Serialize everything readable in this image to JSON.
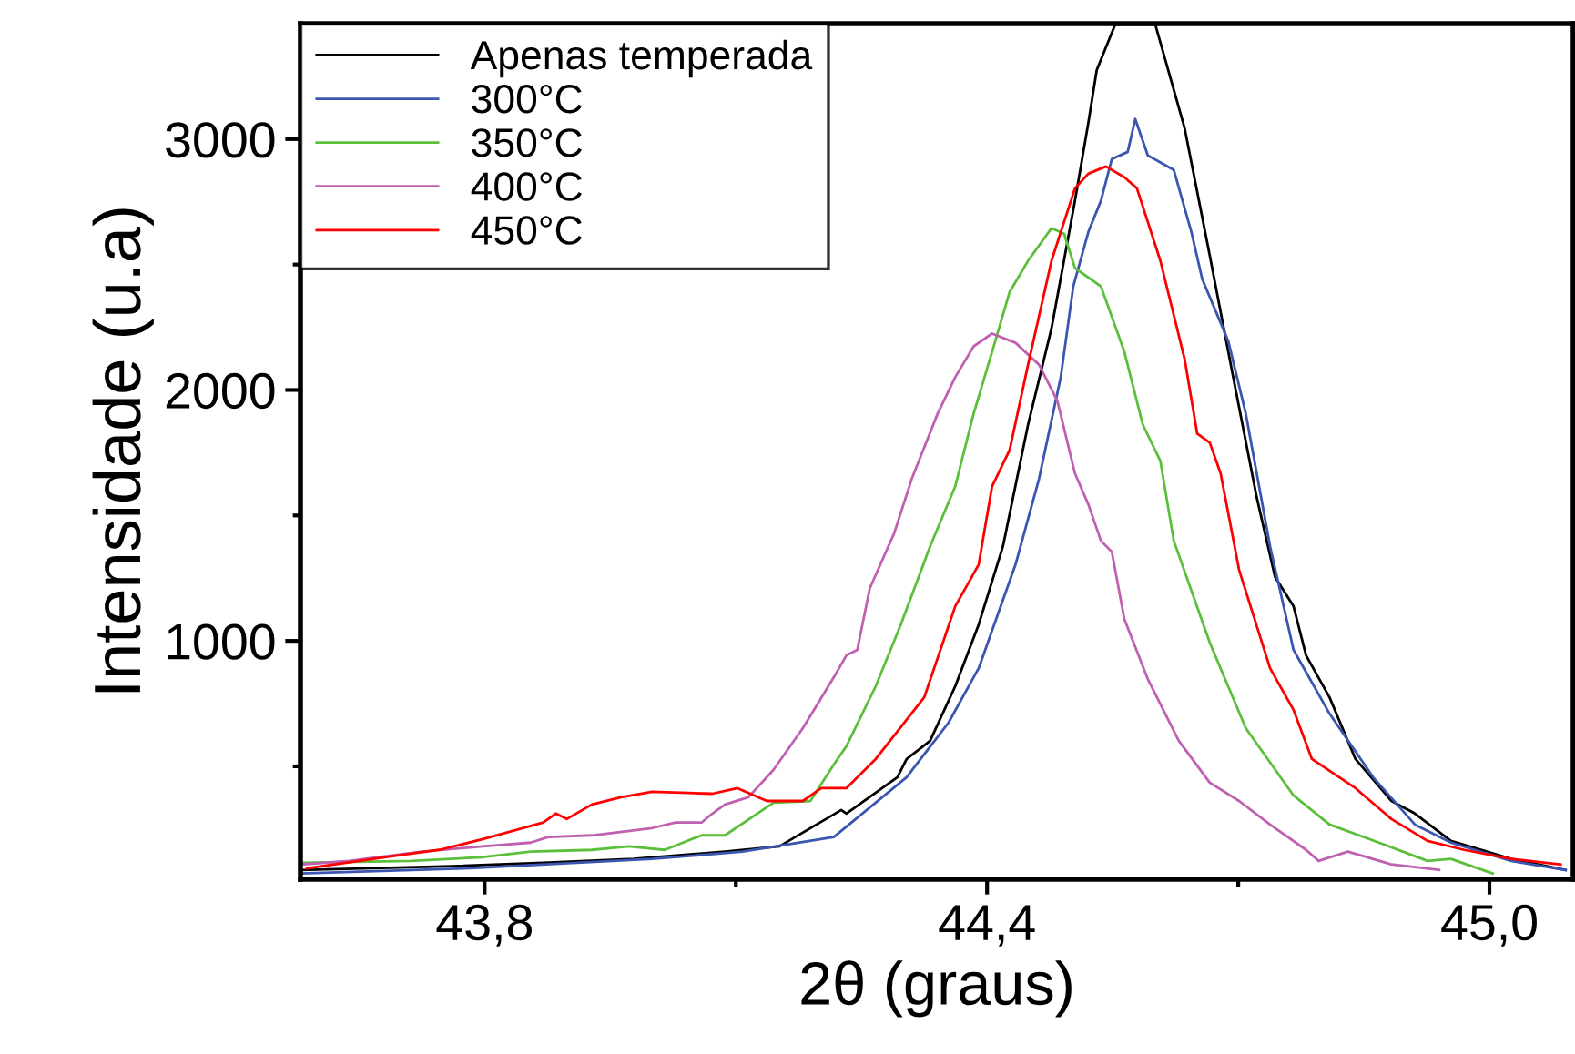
{
  "chart_data": {
    "type": "line",
    "xlabel": "2θ (graus)",
    "ylabel": "Intensidade (u.a)",
    "xlim": [
      43.58,
      45.1
    ],
    "xticks": [
      {
        "value": 43.8,
        "label": "43,8"
      },
      {
        "value": 44.1,
        "label": null
      },
      {
        "value": 44.4,
        "label": "44,4"
      },
      {
        "value": 44.7,
        "label": null
      },
      {
        "value": 45.0,
        "label": "45,0"
      }
    ],
    "ylim": [
      50,
      3460
    ],
    "yticks": [
      {
        "value": 500,
        "label": null
      },
      1000,
      {
        "value": 1500,
        "label": null
      },
      2000,
      {
        "value": 2500,
        "label": null
      },
      3000
    ],
    "grid": false,
    "legend": "top left",
    "marker": "none",
    "line_style": "solid",
    "series": [
      {
        "name": "Apenas temperada",
        "color": "#000000",
        "x": [
          43.58,
          43.761,
          43.87,
          43.978,
          44.087,
          44.152,
          44.226,
          44.232,
          44.293,
          44.304,
          44.332,
          44.362,
          44.39,
          44.419,
          44.449,
          44.477,
          44.505,
          44.521,
          44.531,
          44.553,
          44.601,
          44.636,
          44.666,
          44.694,
          44.722,
          44.744,
          44.766,
          44.781,
          44.809,
          44.84,
          44.883,
          44.911,
          44.954,
          45.026,
          45.091
        ],
        "values": [
          87,
          102,
          116,
          131,
          160,
          181,
          326,
          312,
          457,
          529,
          602,
          819,
          1065,
          1377,
          1862,
          2246,
          2754,
          3065,
          3275,
          3456,
          3456,
          3043,
          2536,
          2051,
          1573,
          1254,
          1138,
          942,
          775,
          529,
          362,
          312,
          203,
          131,
          87
        ]
      },
      {
        "name": "300°C",
        "color": "#3a56b0",
        "x": [
          43.58,
          43.783,
          44.0,
          44.108,
          44.217,
          44.304,
          44.354,
          44.39,
          44.434,
          44.462,
          44.488,
          44.503,
          44.521,
          44.536,
          44.549,
          44.568,
          44.577,
          44.592,
          44.623,
          44.644,
          44.657,
          44.688,
          44.709,
          44.738,
          44.766,
          44.809,
          44.861,
          44.911,
          44.954,
          45.026,
          45.091
        ],
        "values": [
          73,
          94,
          131,
          160,
          218,
          457,
          674,
          891,
          1304,
          1645,
          2051,
          2413,
          2630,
          2754,
          2920,
          2949,
          3080,
          2935,
          2877,
          2630,
          2442,
          2196,
          1906,
          1377,
          964,
          710,
          457,
          268,
          196,
          123,
          87
        ]
      },
      {
        "name": "350°C",
        "color": "#5cbf3c",
        "x": [
          43.58,
          43.712,
          43.798,
          43.855,
          43.928,
          43.972,
          44.015,
          44.059,
          44.087,
          44.145,
          44.189,
          44.217,
          44.232,
          44.267,
          44.297,
          44.332,
          44.362,
          44.384,
          44.406,
          44.427,
          44.449,
          44.477,
          44.492,
          44.505,
          44.536,
          44.564,
          44.586,
          44.607,
          44.623,
          44.666,
          44.709,
          44.766,
          44.809,
          44.868,
          44.926,
          44.954,
          45.004
        ],
        "values": [
          116,
          123,
          138,
          160,
          167,
          181,
          167,
          225,
          225,
          355,
          362,
          507,
          580,
          819,
          1065,
          1377,
          1616,
          1906,
          2152,
          2391,
          2515,
          2645,
          2623,
          2486,
          2413,
          2152,
          1862,
          1717,
          1399,
          993,
          652,
          384,
          268,
          196,
          123,
          131,
          73
        ]
      },
      {
        "name": "400°C",
        "color": "#c060b0",
        "x": [
          43.58,
          43.638,
          43.725,
          43.798,
          43.855,
          43.876,
          43.928,
          44.0,
          44.028,
          44.059,
          44.072,
          44.087,
          44.115,
          44.145,
          44.18,
          44.217,
          44.232,
          44.245,
          44.26,
          44.289,
          44.31,
          44.341,
          44.362,
          44.384,
          44.406,
          44.434,
          44.462,
          44.484,
          44.505,
          44.521,
          44.536,
          44.549,
          44.564,
          44.592,
          44.629,
          44.666,
          44.701,
          44.738,
          44.781,
          44.796,
          44.831,
          44.883,
          44.94
        ],
        "values": [
          109,
          123,
          160,
          181,
          196,
          218,
          225,
          254,
          276,
          276,
          312,
          348,
          377,
          486,
          652,
          855,
          942,
          964,
          1210,
          1428,
          1645,
          1906,
          2051,
          2174,
          2225,
          2188,
          2101,
          1957,
          1667,
          1544,
          1399,
          1355,
          1087,
          848,
          602,
          435,
          362,
          268,
          167,
          123,
          160,
          109,
          87
        ]
      },
      {
        "name": "450°C",
        "color": "#ff0000",
        "x": [
          43.588,
          43.696,
          43.746,
          43.798,
          43.87,
          43.885,
          43.898,
          43.928,
          43.963,
          44.0,
          44.072,
          44.102,
          44.137,
          44.18,
          44.202,
          44.232,
          44.267,
          44.325,
          44.362,
          44.39,
          44.406,
          44.427,
          44.449,
          44.477,
          44.505,
          44.521,
          44.542,
          44.564,
          44.579,
          44.607,
          44.636,
          44.651,
          44.666,
          44.679,
          44.701,
          44.738,
          44.766,
          44.788,
          44.84,
          44.883,
          44.926,
          44.97,
          45.026,
          45.085
        ],
        "values": [
          94,
          145,
          167,
          210,
          276,
          312,
          290,
          348,
          377,
          399,
          391,
          413,
          362,
          362,
          413,
          413,
          529,
          775,
          1138,
          1304,
          1616,
          1761,
          2101,
          2515,
          2804,
          2862,
          2891,
          2848,
          2804,
          2515,
          2123,
          1826,
          1790,
          1667,
          1283,
          891,
          725,
          529,
          413,
          290,
          203,
          167,
          131,
          109
        ]
      }
    ]
  }
}
